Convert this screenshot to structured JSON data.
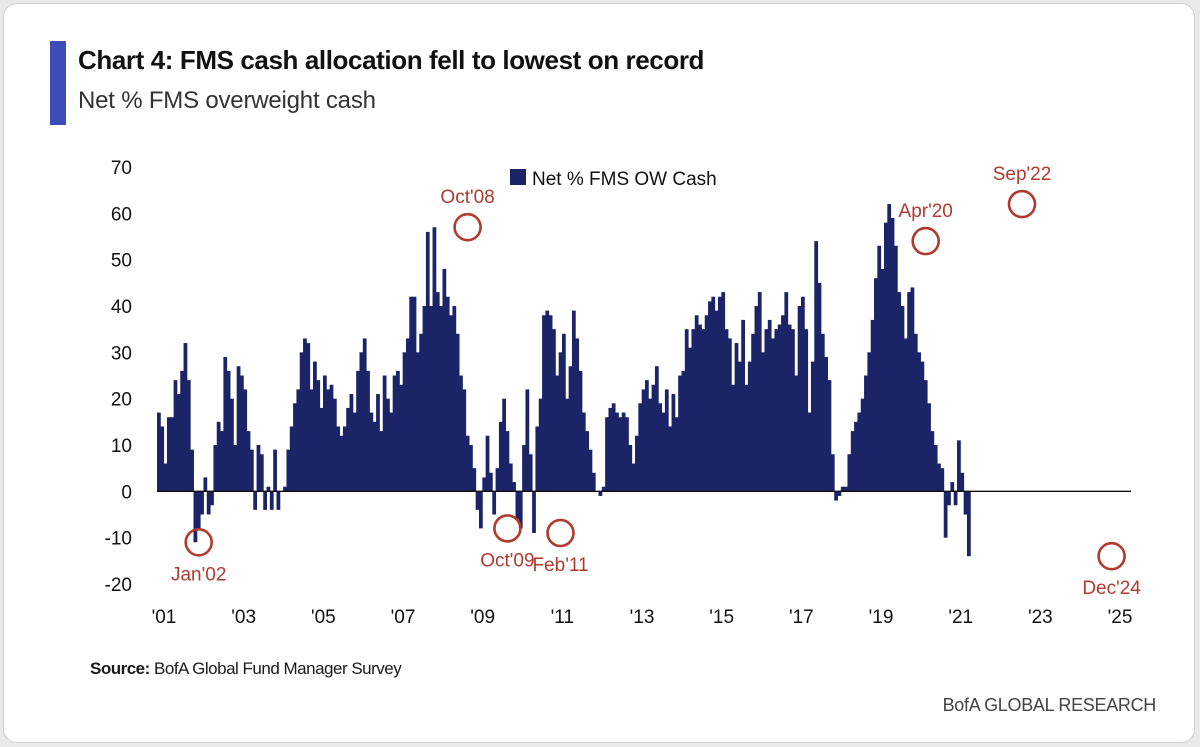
{
  "header": {
    "title": "Chart 4: FMS cash allocation fell to lowest on record",
    "subtitle": "Net % FMS overweight cash"
  },
  "footer": {
    "source_label": "Source:",
    "source_text": "BofA Global Fund Manager Survey",
    "brand": "BofA GLOBAL RESEARCH"
  },
  "colors": {
    "bar": "#1b2466",
    "annotation": "#b03a2e",
    "accent": "#3d4db7",
    "axis": "#111111"
  },
  "chart_data": {
    "type": "bar",
    "title": "Chart 4: FMS cash allocation fell to lowest on record",
    "subtitle": "Net % FMS overweight cash",
    "xlabel": "",
    "ylabel": "",
    "ylim": [
      -20,
      70
    ],
    "yticks": [
      -20,
      -10,
      0,
      10,
      20,
      30,
      40,
      50,
      60,
      70
    ],
    "xlim": [
      2001.0,
      2025.25
    ],
    "xticks": [
      {
        "year": 2001,
        "label": "'01"
      },
      {
        "year": 2003,
        "label": "'03"
      },
      {
        "year": 2005,
        "label": "'05"
      },
      {
        "year": 2007,
        "label": "'07"
      },
      {
        "year": 2009,
        "label": "'09"
      },
      {
        "year": 2011,
        "label": "'11"
      },
      {
        "year": 2013,
        "label": "'13"
      },
      {
        "year": 2015,
        "label": "'15"
      },
      {
        "year": 2017,
        "label": "'17"
      },
      {
        "year": 2019,
        "label": "'19"
      },
      {
        "year": 2021,
        "label": "'21"
      },
      {
        "year": 2023,
        "label": "'23"
      },
      {
        "year": 2025,
        "label": "'25"
      }
    ],
    "series": [
      {
        "name": "Net % FMS OW Cash",
        "start_year": 2001.0,
        "step_months": 1,
        "values": [
          17,
          14,
          6,
          16,
          16,
          24,
          21,
          26,
          32,
          24,
          9,
          -11,
          -8,
          -5,
          3,
          -5,
          -3,
          10,
          15,
          13,
          29,
          26,
          20,
          10,
          27,
          25,
          22,
          13,
          9,
          -4,
          10,
          8,
          -4,
          1,
          -4,
          9,
          -4,
          0,
          1,
          9,
          14,
          19,
          22,
          30,
          33,
          32,
          22,
          28,
          24,
          18,
          25,
          22,
          23,
          20,
          14,
          12,
          14,
          18,
          21,
          17,
          26,
          30,
          33,
          26,
          17,
          15,
          21,
          13,
          25,
          20,
          17,
          25,
          26,
          23,
          30,
          33,
          42,
          42,
          30,
          34,
          40,
          56,
          40,
          57,
          43,
          40,
          48,
          42,
          38,
          40,
          34,
          25,
          22,
          12,
          10,
          5,
          -4,
          -8,
          3,
          12,
          4,
          -5,
          5,
          15,
          20,
          13,
          6,
          2,
          -6,
          -8,
          10,
          22,
          8,
          -9,
          14,
          20,
          38,
          39,
          38,
          35,
          25,
          30,
          34,
          20,
          27,
          39,
          33,
          26,
          17,
          13,
          9,
          4,
          0,
          -1,
          1,
          16,
          18,
          19,
          17,
          16,
          17,
          16,
          10,
          6,
          12,
          19,
          22,
          24,
          20,
          23,
          27,
          19,
          17,
          22,
          14,
          21,
          16,
          25,
          26,
          35,
          31,
          35,
          38,
          36,
          35,
          38,
          41,
          42,
          39,
          42,
          43,
          35,
          33,
          23,
          32,
          28,
          37,
          23,
          28,
          34,
          40,
          43,
          30,
          35,
          37,
          33,
          35,
          36,
          38,
          43,
          36,
          35,
          25,
          40,
          42,
          35,
          17,
          28,
          54,
          45,
          34,
          29,
          24,
          8,
          -2,
          -1,
          1,
          1,
          8,
          13,
          15,
          17,
          20,
          25,
          30,
          37,
          46,
          53,
          48,
          58,
          62,
          59,
          53,
          43,
          40,
          33,
          43,
          44,
          34,
          30,
          28,
          24,
          19,
          13,
          10,
          6,
          5,
          -10,
          -3,
          2,
          -3,
          11,
          4,
          -5,
          -14
        ]
      }
    ],
    "legend": {
      "position": "top-center",
      "entries": [
        "Net % FMS OW Cash"
      ]
    },
    "annotations": [
      {
        "label": "Jan'02",
        "year": 2002.0,
        "value": -11,
        "label_side": "below"
      },
      {
        "label": "Oct'08",
        "year": 2008.75,
        "value": 57,
        "label_side": "above"
      },
      {
        "label": "Oct'09",
        "year": 2009.75,
        "value": -8,
        "label_side": "below"
      },
      {
        "label": "Feb'11",
        "year": 2011.083,
        "value": -9,
        "label_side": "below"
      },
      {
        "label": "Apr'20",
        "year": 2020.25,
        "value": 54,
        "label_side": "above"
      },
      {
        "label": "Sep'22",
        "year": 2022.667,
        "value": 62,
        "label_side": "above"
      },
      {
        "label": "Dec'24",
        "year": 2024.917,
        "value": -14,
        "label_side": "below"
      }
    ]
  }
}
